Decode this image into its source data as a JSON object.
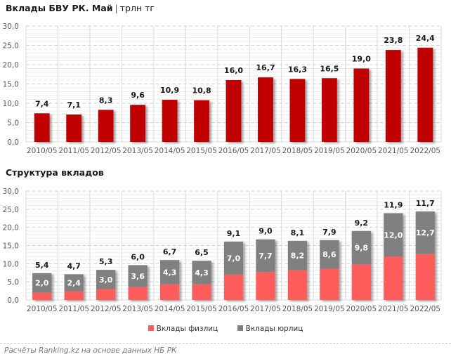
{
  "titles": {
    "chart1_main": "Вклады БВУ РК. Май",
    "chart1_separator": "|",
    "chart1_unit": "трлн тг",
    "chart2_main": "Структура вкладов"
  },
  "legend": [
    {
      "label": "Вклады физлиц",
      "color": "#FF5B5B"
    },
    {
      "label": "Вклады юрлиц",
      "color": "#808080"
    }
  ],
  "footer": "Расчёты Ranking.kz на основе данных НБ РК",
  "chart_data": [
    {
      "type": "bar",
      "title": "Вклады БВУ РК. Май | трлн тг",
      "xlabel": "",
      "ylabel": "",
      "categories": [
        "2010/05",
        "2011/05",
        "2012/05",
        "2013/05",
        "2014/05",
        "2015/05",
        "2016/05",
        "2017/05",
        "2018/05",
        "2019/05",
        "2020/05",
        "2021/05",
        "2022/05"
      ],
      "values": [
        7.4,
        7.1,
        8.3,
        9.6,
        10.9,
        10.8,
        16.0,
        16.7,
        16.3,
        16.5,
        19.0,
        23.8,
        24.4
      ],
      "data_labels": [
        "7,4",
        "7,1",
        "8,3",
        "9,6",
        "10,9",
        "10,8",
        "16,0",
        "16,7",
        "16,3",
        "16,5",
        "19,0",
        "23,8",
        "24,4"
      ],
      "color": "#C00000",
      "ylim": [
        0,
        30
      ],
      "yticks": [
        "0,0",
        "5,0",
        "10,0",
        "15,0",
        "20,0",
        "25,0",
        "30,0"
      ],
      "ytick_values": [
        0,
        5,
        10,
        15,
        20,
        25,
        30
      ],
      "grid": true
    },
    {
      "type": "bar",
      "stacked": true,
      "title": "Структура вкладов",
      "xlabel": "",
      "ylabel": "",
      "categories": [
        "2010/05",
        "2011/05",
        "2012/05",
        "2013/05",
        "2014/05",
        "2015/05",
        "2016/05",
        "2017/05",
        "2018/05",
        "2019/05",
        "2020/05",
        "2021/05",
        "2022/05"
      ],
      "series": [
        {
          "name": "Вклады физлиц",
          "color": "#FF5B5B",
          "values": [
            2.0,
            2.4,
            3.0,
            3.6,
            4.3,
            4.3,
            7.0,
            7.7,
            8.2,
            8.6,
            9.8,
            12.0,
            12.7
          ],
          "data_labels": [
            "2,0",
            "2,4",
            "3,0",
            "3,6",
            "4,3",
            "4,3",
            "7,0",
            "7,7",
            "8,2",
            "8,6",
            "9,8",
            "12,0",
            "12,7"
          ]
        },
        {
          "name": "Вклады юрлиц",
          "color": "#808080",
          "values": [
            5.4,
            4.7,
            5.3,
            6.0,
            6.7,
            6.5,
            9.1,
            9.0,
            8.1,
            7.9,
            9.2,
            11.9,
            11.7
          ],
          "data_labels": [
            "5,4",
            "4,7",
            "5,3",
            "6,0",
            "6,7",
            "6,5",
            "9,1",
            "9,0",
            "8,1",
            "7,9",
            "9,2",
            "11,9",
            "11,7"
          ]
        }
      ],
      "ylim": [
        0,
        30
      ],
      "yticks": [
        "0,0",
        "5,0",
        "10,0",
        "15,0",
        "20,0",
        "25,0",
        "30,0"
      ],
      "ytick_values": [
        0,
        5,
        10,
        15,
        20,
        25,
        30
      ],
      "legend": "bottom-center",
      "grid": true
    }
  ]
}
